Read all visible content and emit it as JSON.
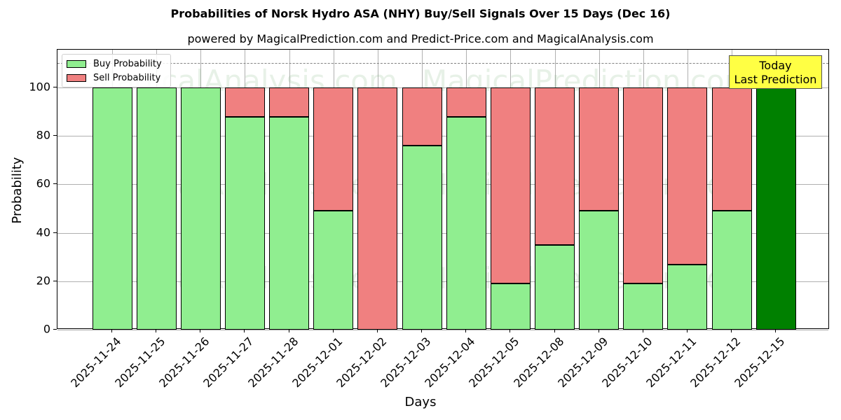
{
  "title": "Probabilities of Norsk Hydro ASA (NHY) Buy/Sell Signals Over 15 Days (Dec 16)",
  "subtitle": "powered by MagicalPrediction.com and Predict-Price.com and MagicalAnalysis.com",
  "legend": {
    "buy_label": "Buy Probability",
    "sell_label": "Sell Probability"
  },
  "annotation": {
    "line1": "Today",
    "line2": "Last Prediction"
  },
  "watermarks": [
    "MagicalAnalysis.com",
    "MagicalPrediction.com"
  ],
  "colors": {
    "buy": "#90ee90",
    "sell": "#f08080",
    "today": "#008000",
    "annotation_bg": "#ffff44",
    "ref_line": "#808080"
  },
  "chart_data": {
    "type": "bar",
    "stacked": true,
    "title": "Probabilities of Norsk Hydro ASA (NHY) Buy/Sell Signals Over 15 Days (Dec 16)",
    "subtitle": "powered by MagicalPrediction.com and Predict-Price.com and MagicalAnalysis.com",
    "xlabel": "Days",
    "ylabel": "Probability",
    "ylim": [
      0,
      115
    ],
    "yticks": [
      0,
      20,
      40,
      60,
      80,
      100
    ],
    "grid": true,
    "legend_position": "upper left",
    "reference_line": {
      "y": 110,
      "style": "dashed"
    },
    "categories": [
      "2025-11-24",
      "2025-11-25",
      "2025-11-26",
      "2025-11-27",
      "2025-11-28",
      "2025-12-01",
      "2025-12-02",
      "2025-12-03",
      "2025-12-04",
      "2025-12-05",
      "2025-12-08",
      "2025-12-09",
      "2025-12-10",
      "2025-12-11",
      "2025-12-12",
      "2025-12-15"
    ],
    "series": [
      {
        "name": "Buy Probability",
        "values": [
          100,
          100,
          100,
          88,
          88,
          49,
          0,
          76,
          88,
          19,
          35,
          49,
          19,
          27,
          49,
          100
        ]
      },
      {
        "name": "Sell Probability",
        "values": [
          0,
          0,
          0,
          12,
          12,
          51,
          100,
          24,
          12,
          81,
          65,
          51,
          81,
          73,
          51,
          0
        ]
      }
    ],
    "highlight": {
      "category": "2025-12-15",
      "label": "Today\nLast Prediction",
      "color": "#008000"
    }
  }
}
